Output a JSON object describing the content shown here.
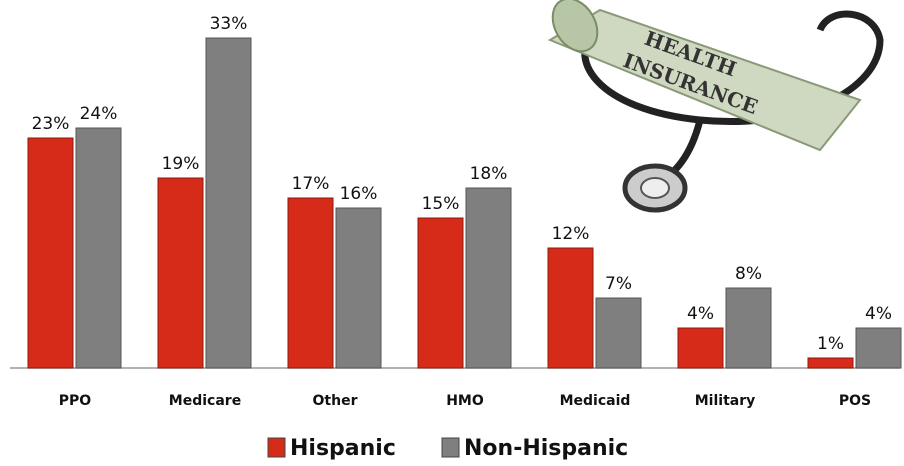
{
  "chart_data": {
    "type": "bar",
    "categories": [
      "PPO",
      "Medicare",
      "Other",
      "HMO",
      "Medicaid",
      "Military",
      "POS"
    ],
    "series": [
      {
        "name": "Hispanic",
        "color": "#d62b18",
        "values": [
          23,
          19,
          17,
          15,
          12,
          4,
          1
        ],
        "value_labels": [
          "23%",
          "19%",
          "17%",
          "15%",
          "12%",
          "4%",
          "1%"
        ]
      },
      {
        "name": "Non-Hispanic",
        "color": "#7f7f7f",
        "values": [
          24,
          33,
          16,
          18,
          7,
          8,
          4
        ],
        "value_labels": [
          "24%",
          "33%",
          "16%",
          "18%",
          "7%",
          "8%",
          "4%"
        ]
      }
    ],
    "legend": "bottom",
    "annotations": [
      "HEALTH",
      "INSURANCE"
    ]
  }
}
